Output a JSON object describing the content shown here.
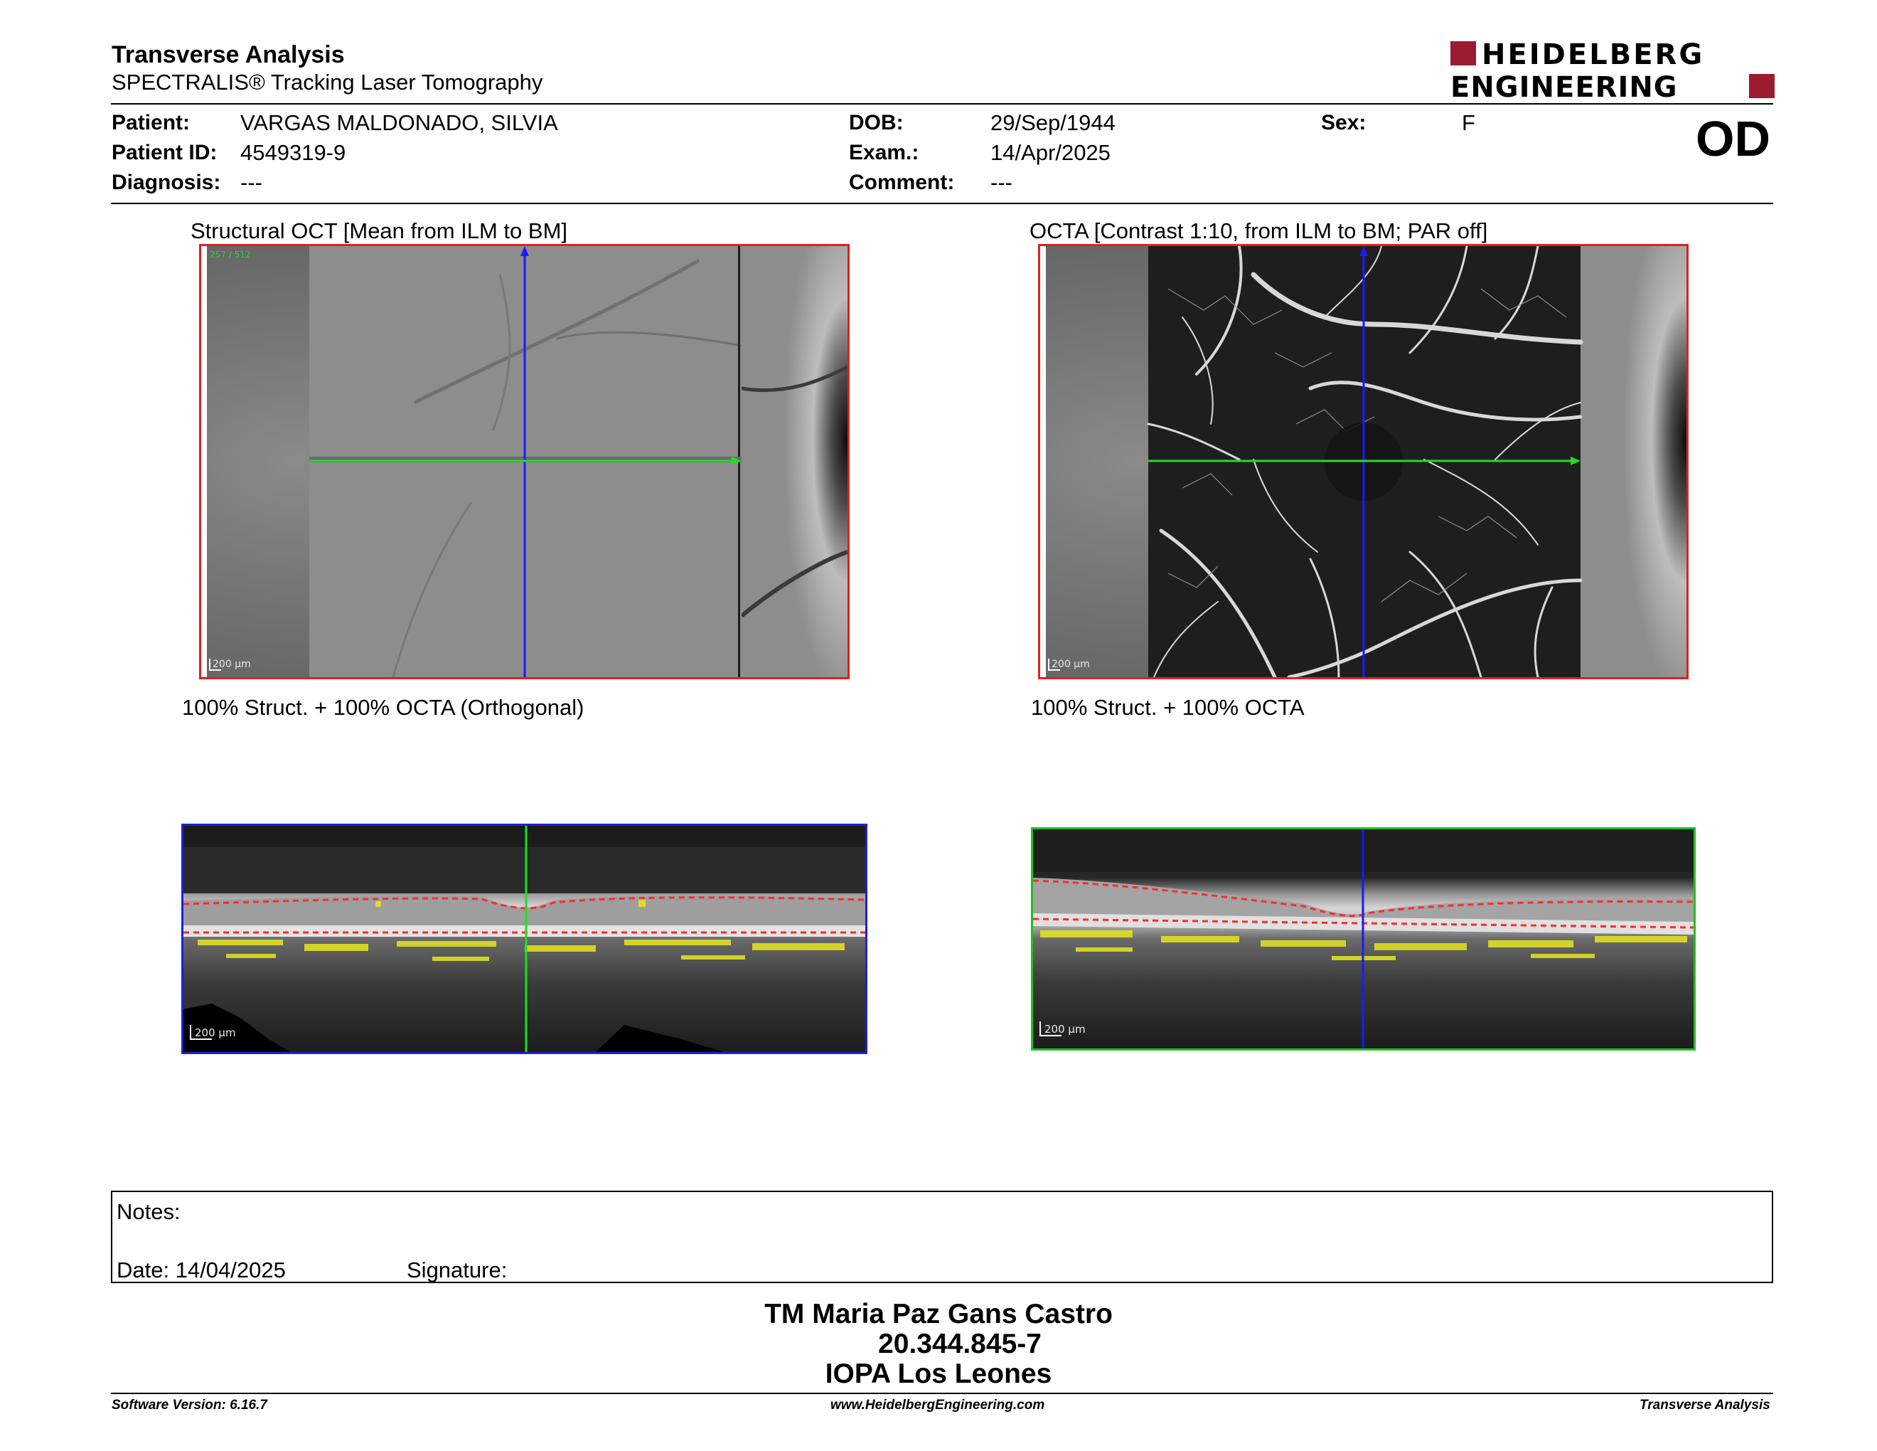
{
  "header": {
    "title": "Transverse Analysis",
    "subtitle": "SPECTRALIS® Tracking Laser Tomography",
    "brand_line1": "HEIDELBERG",
    "brand_line2": "ENGINEERING",
    "brand_color": "#9b1b30"
  },
  "patient": {
    "patient_label": "Patient:",
    "patient_value": "VARGAS MALDONADO, SILVIA",
    "patient_id_label": "Patient ID:",
    "patient_id_value": "4549319-9",
    "diagnosis_label": "Diagnosis:",
    "diagnosis_value": "---",
    "dob_label": "DOB:",
    "dob_value": "29/Sep/1944",
    "exam_label": "Exam.:",
    "exam_value": "14/Apr/2025",
    "comment_label": "Comment:",
    "comment_value": "---",
    "sex_label": "Sex:",
    "sex_value": "F",
    "eye": "OD"
  },
  "images": {
    "structural_caption": "Structural OCT [Mean from ILM to BM]",
    "octa_caption": "OCTA [Contrast 1:10, from ILM to BM; PAR off]",
    "orthogonal_caption": "100% Struct. + 100% OCTA (Orthogonal)",
    "bscan_caption": "100% Struct. + 100% OCTA",
    "slice_indicator": "257 / 512",
    "scale_label": "200 µm"
  },
  "notes": {
    "notes_label": "Notes:",
    "date_label": "Date: 14/04/2025",
    "signature_label": "Signature:"
  },
  "stamp": {
    "line1": "TM Maria Paz Gans Castro",
    "line2": "20.344.845-7",
    "line3": "IOPA Los Leones"
  },
  "footer": {
    "software": "Software Version: 6.16.7",
    "website": "www.HeidelbergEngineering.com",
    "report_type": "Transverse Analysis"
  },
  "colors": {
    "frame_structural": "#e02020",
    "frame_orthogonal": "#2020d0",
    "frame_bscan": "#20c020",
    "scan_line_blue": "#1a1aff",
    "scan_line_green": "#22dd22",
    "segmentation": "#ff2a2a",
    "flow_overlay": "#e6e620"
  }
}
